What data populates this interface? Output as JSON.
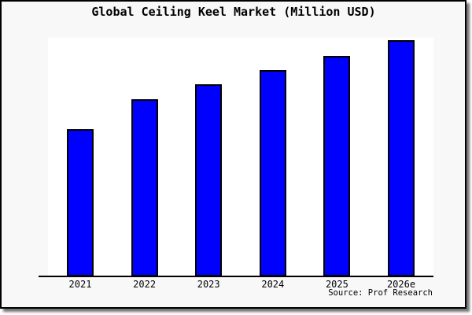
{
  "frame": {
    "background_color": "#f8f8f8",
    "plot_background_color": "#ffffff",
    "border_color": "#000000"
  },
  "chart_data": {
    "type": "bar",
    "title": "Global Ceiling Keel Market (Million USD)",
    "categories": [
      "2021",
      "2022",
      "2023",
      "2024",
      "2025",
      "2026e"
    ],
    "values": [
      62.5,
      75,
      81.5,
      87.5,
      93.5,
      100
    ],
    "values_note": "no y-axis labels or gridlines shown; values estimated relative to tallest bar = 100",
    "xlabel": "",
    "ylabel": "",
    "ylim": [
      0,
      101
    ],
    "grid": false,
    "legend": false,
    "y_axis_visible": false,
    "bar_color": "#0000ff",
    "bar_border_color": "#000000"
  },
  "source": {
    "label": "Source: Prof Research"
  }
}
